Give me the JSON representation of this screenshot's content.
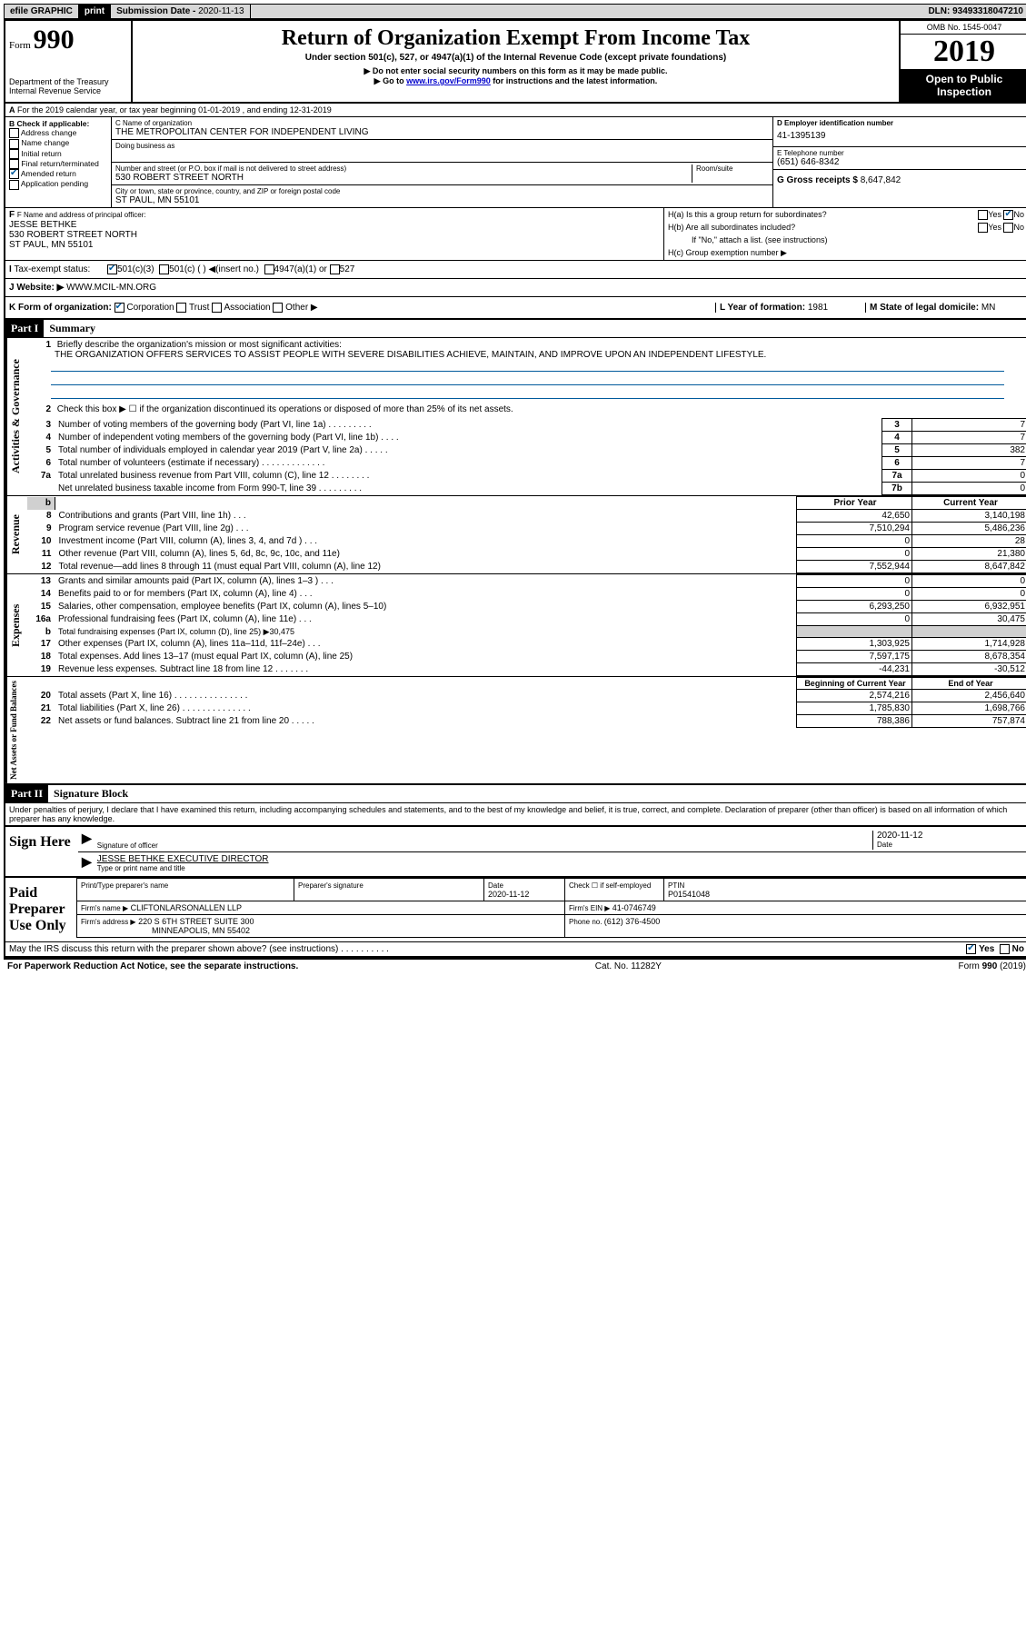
{
  "topbar": {
    "efile_label": "efile GRAPHIC",
    "print": "print",
    "submission_label": "Submission Date - ",
    "submission_date": "2020-11-13",
    "dln_label": "DLN: ",
    "dln": "93493318047210"
  },
  "header": {
    "form_label": "Form",
    "form_num": "990",
    "dept1": "Department of the Treasury",
    "dept2": "Internal Revenue Service",
    "title": "Return of Organization Exempt From Income Tax",
    "subtitle": "Under section 501(c), 527, or 4947(a)(1) of the Internal Revenue Code (except private foundations)",
    "note1": "▶ Do not enter social security numbers on this form as it may be made public.",
    "note2_pre": "▶ Go to ",
    "note2_link": "www.irs.gov/Form990",
    "note2_post": " for instructions and the latest information.",
    "omb": "OMB No. 1545-0047",
    "year": "2019",
    "open": "Open to Public Inspection"
  },
  "section_a": {
    "text": "For the 2019 calendar year, or tax year beginning 01-01-2019   , and ending 12-31-2019"
  },
  "box_b": {
    "title": "B Check if applicable:",
    "items": [
      "Address change",
      "Name change",
      "Initial return",
      "Final return/terminated",
      "Amended return",
      "Application pending"
    ],
    "checked_idx": 4
  },
  "box_c": {
    "name_label": "C Name of organization",
    "name": "THE METROPOLITAN CENTER FOR INDEPENDENT LIVING",
    "dba_label": "Doing business as",
    "addr_label": "Number and street (or P.O. box if mail is not delivered to street address)",
    "room_label": "Room/suite",
    "addr": "530 ROBERT STREET NORTH",
    "city_label": "City or town, state or province, country, and ZIP or foreign postal code",
    "city": "ST PAUL, MN  55101"
  },
  "box_d": {
    "label": "D Employer identification number",
    "value": "41-1395139"
  },
  "box_e": {
    "label": "E Telephone number",
    "value": "(651) 646-8342"
  },
  "box_g": {
    "label": "G Gross receipts $ ",
    "value": "8,647,842"
  },
  "box_f": {
    "label": "F  Name and address of principal officer:",
    "name": "JESSE BETHKE",
    "addr": "530 ROBERT STREET NORTH",
    "city": "ST PAUL, MN  55101"
  },
  "box_h": {
    "ha": "H(a)  Is this a group return for subordinates?",
    "ha_yes": "Yes",
    "ha_no": "No",
    "hb": "H(b)  Are all subordinates included?",
    "hb_yes": "Yes",
    "hb_no": "No",
    "hb_note": "If \"No,\" attach a list. (see instructions)",
    "hc": "H(c)  Group exemption number ▶"
  },
  "box_i": {
    "label": "Tax-exempt status:",
    "o1": "501(c)(3)",
    "o2": "501(c) (  )  ◀(insert no.)",
    "o3": "4947(a)(1) or",
    "o4": "527"
  },
  "box_j": {
    "label": "Website: ▶",
    "value": "WWW.MCIL-MN.ORG"
  },
  "box_k": {
    "label": "K Form of organization:",
    "o1": "Corporation",
    "o2": "Trust",
    "o3": "Association",
    "o4": "Other ▶"
  },
  "box_l": {
    "label": "L Year of formation: ",
    "value": "1981"
  },
  "box_m": {
    "label": "M State of legal domicile: ",
    "value": "MN"
  },
  "part1": {
    "num": "Part I",
    "title": "Summary",
    "l1_label": "Briefly describe the organization's mission or most significant activities:",
    "l1_text": "THE ORGANIZATION OFFERS SERVICES TO ASSIST PEOPLE WITH SEVERE DISABILITIES ACHIEVE, MAINTAIN, AND IMPROVE UPON AN INDEPENDENT LIFESTYLE.",
    "l2": "Check this box ▶ ☐  if the organization discontinued its operations or disposed of more than 25% of its net assets.",
    "lines_ag": [
      {
        "n": "3",
        "t": "Number of voting members of the governing body (Part VI, line 1a)   .    .    .    .    .    .    .    .    .",
        "cn": "3",
        "v": "7"
      },
      {
        "n": "4",
        "t": "Number of independent voting members of the governing body (Part VI, line 1b)   .    .    .    .",
        "cn": "4",
        "v": "7"
      },
      {
        "n": "5",
        "t": "Total number of individuals employed in calendar year 2019 (Part V, line 2a)   .    .    .    .    .",
        "cn": "5",
        "v": "382"
      },
      {
        "n": "6",
        "t": "Total number of volunteers (estimate if necessary)    .    .    .    .    .    .    .    .    .    .    .    .    .",
        "cn": "6",
        "v": "7"
      },
      {
        "n": "7a",
        "t": "Total unrelated business revenue from Part VIII, column (C), line 12   .    .    .    .    .    .    .    .",
        "cn": "7a",
        "v": "0"
      },
      {
        "n": "",
        "t": "Net unrelated business taxable income from Form 990-T, line 39    .    .    .    .    .    .    .    .    .",
        "cn": "7b",
        "v": "0"
      }
    ],
    "header_prior": "Prior Year",
    "header_current": "Current Year",
    "revenue": [
      {
        "n": "8",
        "t": "Contributions and grants (Part VIII, line 1h)    .    .    .",
        "p": "42,650",
        "c": "3,140,198"
      },
      {
        "n": "9",
        "t": "Program service revenue (Part VIII, line 2g)    .    .    .",
        "p": "7,510,294",
        "c": "5,486,236"
      },
      {
        "n": "10",
        "t": "Investment income (Part VIII, column (A), lines 3, 4, and 7d )   .    .    .",
        "p": "0",
        "c": "28"
      },
      {
        "n": "11",
        "t": "Other revenue (Part VIII, column (A), lines 5, 6d, 8c, 9c, 10c, and 11e)",
        "p": "0",
        "c": "21,380"
      },
      {
        "n": "12",
        "t": "Total revenue—add lines 8 through 11 (must equal Part VIII, column (A), line 12)",
        "p": "7,552,944",
        "c": "8,647,842"
      }
    ],
    "expenses": [
      {
        "n": "13",
        "t": "Grants and similar amounts paid (Part IX, column (A), lines 1–3 )   .    .    .",
        "p": "0",
        "c": "0"
      },
      {
        "n": "14",
        "t": "Benefits paid to or for members (Part IX, column (A), line 4)   .    .    .",
        "p": "0",
        "c": "0"
      },
      {
        "n": "15",
        "t": "Salaries, other compensation, employee benefits (Part IX, column (A), lines 5–10)",
        "p": "6,293,250",
        "c": "6,932,951"
      },
      {
        "n": "16a",
        "t": "Professional fundraising fees (Part IX, column (A), line 11e)   .    .    .",
        "p": "0",
        "c": "30,475"
      },
      {
        "n": "b",
        "t": "Total fundraising expenses (Part IX, column (D), line 25) ▶30,475",
        "p": "",
        "c": "",
        "grey": true
      },
      {
        "n": "17",
        "t": "Other expenses (Part IX, column (A), lines 11a–11d, 11f–24e)   .    .    .",
        "p": "1,303,925",
        "c": "1,714,928"
      },
      {
        "n": "18",
        "t": "Total expenses. Add lines 13–17 (must equal Part IX, column (A), line 25)",
        "p": "7,597,175",
        "c": "8,678,354"
      },
      {
        "n": "19",
        "t": "Revenue less expenses. Subtract line 18 from line 12   .    .    .    .    .    .    .",
        "p": "-44,231",
        "c": "-30,512"
      }
    ],
    "header_begin": "Beginning of Current Year",
    "header_end": "End of Year",
    "netassets": [
      {
        "n": "20",
        "t": "Total assets (Part X, line 16)   .    .    .    .    .    .    .    .    .    .    .    .    .    .    .",
        "p": "2,574,216",
        "c": "2,456,640"
      },
      {
        "n": "21",
        "t": "Total liabilities (Part X, line 26)   .    .    .    .    .    .    .    .    .    .    .    .    .    .",
        "p": "1,785,830",
        "c": "1,698,766"
      },
      {
        "n": "22",
        "t": "Net assets or fund balances. Subtract line 21 from line 20    .    .    .    .    .",
        "p": "788,386",
        "c": "757,874"
      }
    ],
    "side_ag": "Activities & Governance",
    "side_rev": "Revenue",
    "side_exp": "Expenses",
    "side_net": "Net Assets or Fund Balances"
  },
  "part2": {
    "num": "Part II",
    "title": "Signature Block",
    "penalties": "Under penalties of perjury, I declare that I have examined this return, including accompanying schedules and statements, and to the best of my knowledge and belief, it is true, correct, and complete. Declaration of preparer (other than officer) is based on all information of which preparer has any knowledge.",
    "sign_here": "Sign Here",
    "sig_officer": "Signature of officer",
    "sig_date_label": "Date",
    "sig_date": "2020-11-12",
    "sig_name": "JESSE BETHKE EXECUTIVE DIRECTOR",
    "sig_name_label": "Type or print name and title",
    "paid_prep": "Paid Preparer Use Only",
    "prep_name_label": "Print/Type preparer's name",
    "prep_sig_label": "Preparer's signature",
    "prep_date_label": "Date",
    "prep_date": "2020-11-12",
    "prep_check_label": "Check ☐ if self-employed",
    "ptin_label": "PTIN",
    "ptin": "P01541048",
    "firm_name_label": "Firm's name    ▶",
    "firm_name": "CLIFTONLARSONALLEN LLP",
    "firm_ein_label": "Firm's EIN ▶ ",
    "firm_ein": "41-0746749",
    "firm_addr_label": "Firm's address ▶",
    "firm_addr1": "220 S 6TH STREET SUITE 300",
    "firm_addr2": "MINNEAPOLIS, MN  55402",
    "phone_label": "Phone no. ",
    "phone": "(612) 376-4500",
    "discuss": "May the IRS discuss this return with the preparer shown above? (see instructions)    .    .    .    .    .    .    .    .    .    .",
    "discuss_yes": "Yes",
    "discuss_no": "No"
  },
  "footer": {
    "left": "For Paperwork Reduction Act Notice, see the separate instructions.",
    "center": "Cat. No. 11282Y",
    "right": "Form 990 (2019)"
  }
}
